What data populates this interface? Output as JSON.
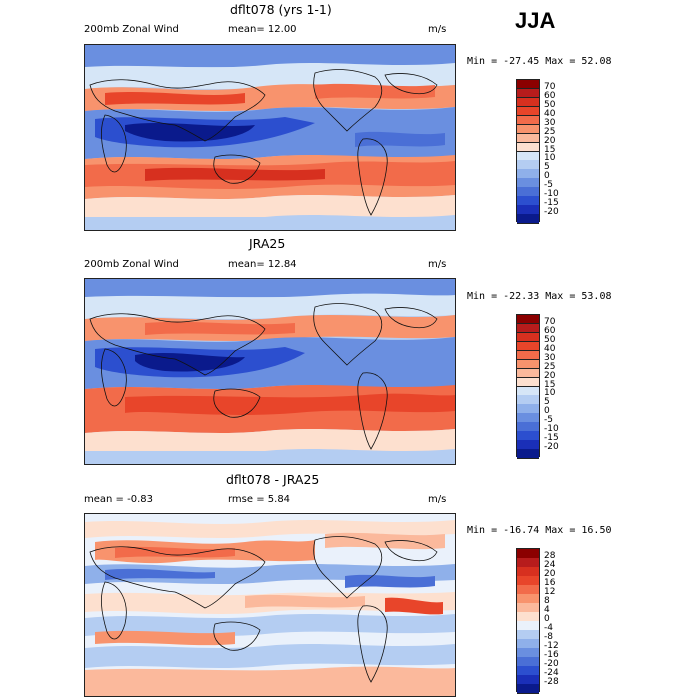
{
  "season": "JJA",
  "units": "m/s",
  "panels": [
    {
      "id": "model",
      "title": "dflt078 (yrs 1-1)",
      "left_label": "200mb Zonal Wind",
      "center_label": "mean=  12.00",
      "minmax": "Min = -27.45 Max =  52.08",
      "colorbar_levels": [
        "70",
        "60",
        "50",
        "40",
        "30",
        "25",
        "20",
        "15",
        "10",
        "5",
        "0",
        "-5",
        "-10",
        "-15",
        "-20"
      ],
      "colorbar_colors": [
        "#8b0000",
        "#b71c1c",
        "#d7301f",
        "#e8452a",
        "#f26b4a",
        "#f8936d",
        "#fbb99c",
        "#fde0cf",
        "#d6e6f7",
        "#b4cdf2",
        "#8fb0ea",
        "#6a8fe0",
        "#4a6fd6",
        "#2c4fcf",
        "#1a2fb8",
        "#0a1a8c"
      ]
    },
    {
      "id": "reanalysis",
      "title": "JRA25",
      "left_label": "200mb Zonal Wind",
      "center_label": "mean=  12.84",
      "minmax": "Min = -22.33 Max =  53.08",
      "colorbar_levels": [
        "70",
        "60",
        "50",
        "40",
        "30",
        "25",
        "20",
        "15",
        "10",
        "5",
        "0",
        "-5",
        "-10",
        "-15",
        "-20"
      ],
      "colorbar_colors": [
        "#8b0000",
        "#b71c1c",
        "#d7301f",
        "#e8452a",
        "#f26b4a",
        "#f8936d",
        "#fbb99c",
        "#fde0cf",
        "#d6e6f7",
        "#b4cdf2",
        "#8fb0ea",
        "#6a8fe0",
        "#4a6fd6",
        "#2c4fcf",
        "#1a2fb8",
        "#0a1a8c"
      ]
    },
    {
      "id": "difference",
      "title": "dflt078 - JRA25",
      "left_label": "mean =  -0.83",
      "center_label": "rmse =   5.84",
      "minmax": "Min = -16.74 Max =  16.50",
      "colorbar_levels": [
        "28",
        "24",
        "20",
        "16",
        "12",
        "8",
        "4",
        "0",
        "-4",
        "-8",
        "-12",
        "-16",
        "-20",
        "-24",
        "-28"
      ],
      "colorbar_colors": [
        "#8b0000",
        "#b71c1c",
        "#d7301f",
        "#e8452a",
        "#f26b4a",
        "#f8936d",
        "#fbb99c",
        "#fde0cf",
        "#eaf1fb",
        "#b4cdf2",
        "#8fb0ea",
        "#6a8fe0",
        "#4a6fd6",
        "#2c4fcf",
        "#1a2fb8",
        "#0a1a8c"
      ]
    }
  ],
  "chart_data": [
    {
      "type": "heatmap",
      "title": "dflt078 (yrs 1-1)",
      "variable": "200mb Zonal Wind",
      "units": "m/s",
      "mean": 12.0,
      "min": -27.45,
      "max": 52.08,
      "levels": [
        -20,
        -15,
        -10,
        -5,
        0,
        5,
        10,
        15,
        20,
        25,
        30,
        40,
        50,
        60,
        70
      ]
    },
    {
      "type": "heatmap",
      "title": "JRA25",
      "variable": "200mb Zonal Wind",
      "units": "m/s",
      "mean": 12.84,
      "min": -22.33,
      "max": 53.08,
      "levels": [
        -20,
        -15,
        -10,
        -5,
        0,
        5,
        10,
        15,
        20,
        25,
        30,
        40,
        50,
        60,
        70
      ]
    },
    {
      "type": "heatmap",
      "title": "dflt078 - JRA25",
      "units": "m/s",
      "mean": -0.83,
      "rmse": 5.84,
      "min": -16.74,
      "max": 16.5,
      "levels": [
        -28,
        -24,
        -20,
        -16,
        -12,
        -8,
        -4,
        0,
        4,
        8,
        12,
        16,
        20,
        24,
        28
      ]
    }
  ]
}
